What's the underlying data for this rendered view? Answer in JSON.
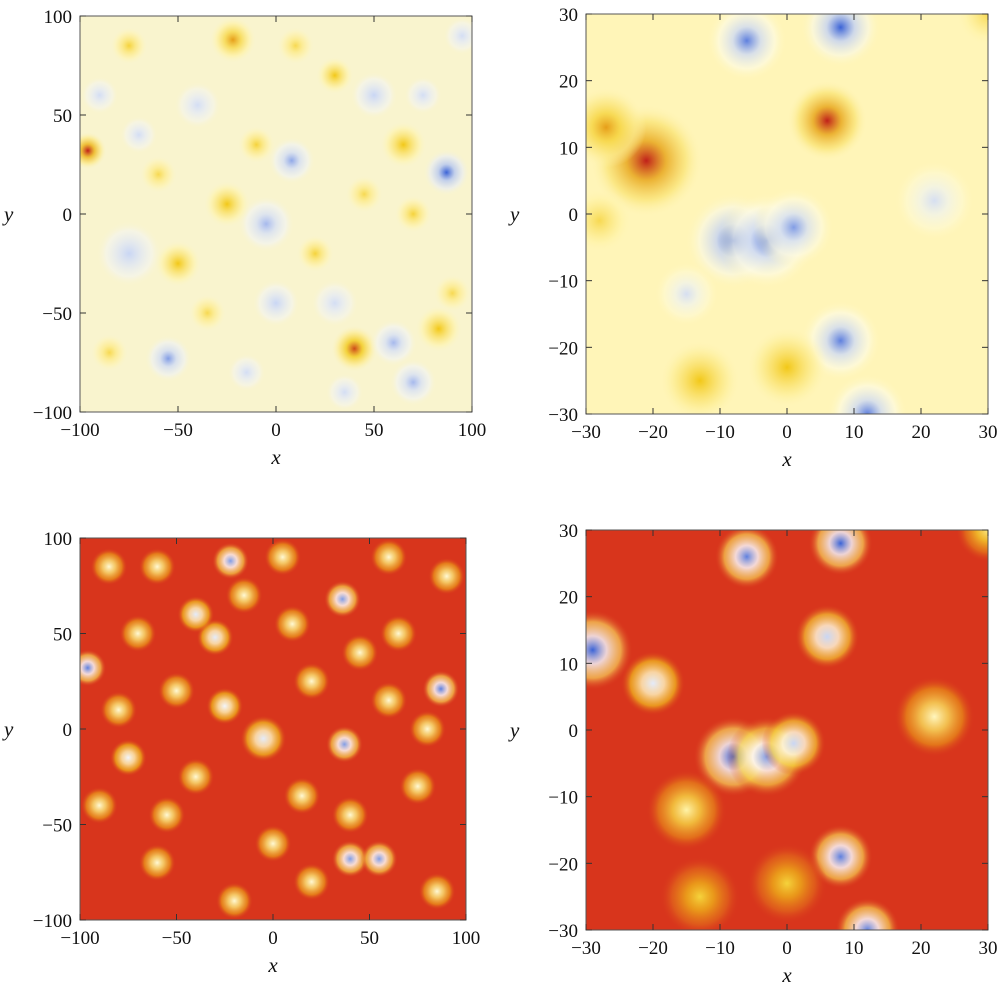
{
  "chart_data": [
    {
      "type": "heatmap",
      "panel": "top-left",
      "xlabel": "x",
      "ylabel": "y",
      "xlim": [
        -100,
        100
      ],
      "ylim": [
        -100,
        100
      ],
      "xticks": [
        -100,
        -50,
        0,
        50,
        100
      ],
      "yticks": [
        -100,
        -50,
        0,
        50,
        100
      ],
      "xtick_labels": [
        "−100",
        "−50",
        "0",
        "50",
        "100"
      ],
      "ytick_labels": [
        "−100",
        "−50",
        "0",
        "50",
        "100"
      ],
      "colormap": [
        "#3b63d6",
        "#c9d6f4",
        "#f3f5f4",
        "#fff3a8",
        "#f2c818",
        "#c0201a"
      ],
      "background_level": 0.5,
      "blobs": [
        {
          "x": -96,
          "y": 32,
          "r": 4,
          "level": 1.0
        },
        {
          "x": 40,
          "y": -68,
          "r": 5,
          "level": 0.95
        },
        {
          "x": -22,
          "y": 88,
          "r": 5,
          "level": 0.85
        },
        {
          "x": 87,
          "y": 21,
          "r": 5,
          "level": 0.0
        },
        {
          "x": 8,
          "y": 27,
          "r": 5,
          "level": 0.12
        },
        {
          "x": -55,
          "y": -73,
          "r": 5,
          "level": 0.1
        },
        {
          "x": -5,
          "y": -5,
          "r": 6,
          "level": 0.15
        },
        {
          "x": -75,
          "y": -20,
          "r": 7,
          "level": 0.2
        },
        {
          "x": 60,
          "y": -65,
          "r": 5,
          "level": 0.15
        },
        {
          "x": 70,
          "y": -85,
          "r": 5,
          "level": 0.15
        },
        {
          "x": -40,
          "y": 55,
          "r": 5,
          "level": 0.25
        },
        {
          "x": 50,
          "y": 60,
          "r": 5,
          "level": 0.2
        },
        {
          "x": 0,
          "y": -45,
          "r": 5,
          "level": 0.2
        },
        {
          "x": 30,
          "y": -45,
          "r": 5,
          "level": 0.25
        },
        {
          "x": -25,
          "y": 5,
          "r": 5,
          "level": 0.8
        },
        {
          "x": 65,
          "y": 35,
          "r": 5,
          "level": 0.8
        },
        {
          "x": 83,
          "y": -58,
          "r": 5,
          "level": 0.8
        },
        {
          "x": -50,
          "y": -25,
          "r": 5,
          "level": 0.8
        },
        {
          "x": 30,
          "y": 70,
          "r": 4,
          "level": 0.8
        },
        {
          "x": -10,
          "y": 35,
          "r": 4,
          "level": 0.75
        },
        {
          "x": 70,
          "y": 0,
          "r": 4,
          "level": 0.75
        },
        {
          "x": -75,
          "y": 85,
          "r": 4,
          "level": 0.75
        },
        {
          "x": 20,
          "y": -20,
          "r": 4,
          "level": 0.75
        },
        {
          "x": -85,
          "y": -70,
          "r": 4,
          "level": 0.72
        },
        {
          "x": 90,
          "y": -40,
          "r": 4,
          "level": 0.72
        },
        {
          "x": -35,
          "y": -50,
          "r": 4,
          "level": 0.72
        },
        {
          "x": 45,
          "y": 10,
          "r": 4,
          "level": 0.72
        },
        {
          "x": -60,
          "y": 20,
          "r": 4,
          "level": 0.72
        },
        {
          "x": 10,
          "y": 85,
          "r": 4,
          "level": 0.72
        },
        {
          "x": -90,
          "y": 60,
          "r": 4,
          "level": 0.25
        },
        {
          "x": 95,
          "y": 90,
          "r": 4,
          "level": 0.25
        },
        {
          "x": -15,
          "y": -80,
          "r": 4,
          "level": 0.25
        },
        {
          "x": 35,
          "y": -90,
          "r": 4,
          "level": 0.25
        },
        {
          "x": 75,
          "y": 60,
          "r": 4,
          "level": 0.25
        },
        {
          "x": -70,
          "y": 40,
          "r": 4,
          "level": 0.25
        }
      ]
    },
    {
      "type": "heatmap",
      "panel": "top-right",
      "xlabel": "x",
      "ylabel": "y",
      "xlim": [
        -30,
        30
      ],
      "ylim": [
        -30,
        30
      ],
      "xticks": [
        -30,
        -20,
        -10,
        0,
        10,
        20,
        30
      ],
      "yticks": [
        -30,
        -20,
        -10,
        0,
        10,
        20,
        30
      ],
      "xtick_labels": [
        "−30",
        "−20",
        "−10",
        "0",
        "10",
        "20",
        "30"
      ],
      "ytick_labels": [
        "−30",
        "−20",
        "−10",
        "0",
        "10",
        "20",
        "30"
      ],
      "colormap": [
        "#3b63d6",
        "#c9d6f4",
        "#fdfbe6",
        "#fff3a8",
        "#f2c818",
        "#c0201a"
      ],
      "background_level": 0.55,
      "blobs": [
        {
          "x": -21,
          "y": 8,
          "r": 3.5,
          "level": 1.0
        },
        {
          "x": -27,
          "y": 13,
          "r": 2.5,
          "level": 0.85
        },
        {
          "x": 6,
          "y": 14,
          "r": 2.5,
          "level": 1.0
        },
        {
          "x": -8,
          "y": -4,
          "r": 3,
          "level": 0.0
        },
        {
          "x": -3,
          "y": -4,
          "r": 3,
          "level": 0.05
        },
        {
          "x": 1,
          "y": -2,
          "r": 2.5,
          "level": 0.1
        },
        {
          "x": -6,
          "y": 26,
          "r": 2.5,
          "level": 0.05
        },
        {
          "x": 8,
          "y": 28,
          "r": 2.5,
          "level": 0.0
        },
        {
          "x": 8,
          "y": -19,
          "r": 2.5,
          "level": 0.05
        },
        {
          "x": 12,
          "y": -30,
          "r": 2.5,
          "level": 0.05
        },
        {
          "x": -15,
          "y": -12,
          "r": 2,
          "level": 0.25
        },
        {
          "x": 22,
          "y": 2,
          "r": 2.5,
          "level": 0.25
        },
        {
          "x": -13,
          "y": -25,
          "r": 2.5,
          "level": 0.8
        },
        {
          "x": 0,
          "y": -23,
          "r": 2.5,
          "level": 0.8
        },
        {
          "x": -28,
          "y": -1,
          "r": 2,
          "level": 0.72
        },
        {
          "x": 30,
          "y": 30,
          "r": 2,
          "level": 0.72
        }
      ]
    },
    {
      "type": "heatmap",
      "panel": "bottom-left",
      "xlabel": "x",
      "ylabel": "y",
      "xlim": [
        -100,
        100
      ],
      "ylim": [
        -100,
        100
      ],
      "xticks": [
        -100,
        -50,
        0,
        50,
        100
      ],
      "yticks": [
        -100,
        -50,
        0,
        50,
        100
      ],
      "xtick_labels": [
        "−100",
        "−50",
        "0",
        "50",
        "100"
      ],
      "ytick_labels": [
        "−100",
        "−50",
        "0",
        "50",
        "100"
      ],
      "colormap": [
        "#3b63d6",
        "#c9d6f4",
        "#ffffff",
        "#fff3a8",
        "#f2c818",
        "#d8351c"
      ],
      "background_level": 1.0,
      "blobs": [
        {
          "x": -96,
          "y": 32,
          "r": 4,
          "level": 0.05
        },
        {
          "x": -22,
          "y": 88,
          "r": 4,
          "level": 0.1
        },
        {
          "x": 36,
          "y": 68,
          "r": 4,
          "level": 0.1
        },
        {
          "x": 87,
          "y": 21,
          "r": 4,
          "level": 0.05
        },
        {
          "x": 37,
          "y": -8,
          "r": 4,
          "level": 0.1
        },
        {
          "x": 40,
          "y": -68,
          "r": 4,
          "level": 0.1
        },
        {
          "x": 55,
          "y": -68,
          "r": 4,
          "level": 0.1
        },
        {
          "x": -5,
          "y": -5,
          "r": 5,
          "level": 0.3
        },
        {
          "x": -30,
          "y": 48,
          "r": 4,
          "level": 0.3
        },
        {
          "x": -40,
          "y": 60,
          "r": 4,
          "level": 0.3
        },
        {
          "x": -25,
          "y": 12,
          "r": 4,
          "level": 0.35
        },
        {
          "x": -75,
          "y": -15,
          "r": 4,
          "level": 0.35
        },
        {
          "x": -85,
          "y": 85,
          "r": 4,
          "level": 0.5
        },
        {
          "x": -60,
          "y": 85,
          "r": 4,
          "level": 0.5
        },
        {
          "x": 5,
          "y": 90,
          "r": 4,
          "level": 0.5
        },
        {
          "x": 60,
          "y": 90,
          "r": 4,
          "level": 0.5
        },
        {
          "x": 90,
          "y": 80,
          "r": 4,
          "level": 0.5
        },
        {
          "x": -70,
          "y": 50,
          "r": 4,
          "level": 0.5
        },
        {
          "x": 10,
          "y": 55,
          "r": 4,
          "level": 0.5
        },
        {
          "x": 65,
          "y": 50,
          "r": 4,
          "level": 0.5
        },
        {
          "x": -50,
          "y": 20,
          "r": 4,
          "level": 0.5
        },
        {
          "x": 20,
          "y": 25,
          "r": 4,
          "level": 0.5
        },
        {
          "x": 60,
          "y": 15,
          "r": 4,
          "level": 0.5
        },
        {
          "x": -90,
          "y": -40,
          "r": 4,
          "level": 0.5
        },
        {
          "x": -40,
          "y": -25,
          "r": 4,
          "level": 0.5
        },
        {
          "x": 15,
          "y": -35,
          "r": 4,
          "level": 0.5
        },
        {
          "x": 75,
          "y": -30,
          "r": 4,
          "level": 0.5
        },
        {
          "x": -60,
          "y": -70,
          "r": 4,
          "level": 0.5
        },
        {
          "x": -20,
          "y": -90,
          "r": 4,
          "level": 0.5
        },
        {
          "x": 20,
          "y": -80,
          "r": 4,
          "level": 0.5
        },
        {
          "x": 85,
          "y": -85,
          "r": 4,
          "level": 0.5
        },
        {
          "x": -80,
          "y": 10,
          "r": 4,
          "level": 0.5
        },
        {
          "x": 45,
          "y": 40,
          "r": 4,
          "level": 0.5
        },
        {
          "x": -15,
          "y": 70,
          "r": 4,
          "level": 0.5
        },
        {
          "x": 80,
          "y": 0,
          "r": 4,
          "level": 0.5
        },
        {
          "x": -55,
          "y": -45,
          "r": 4,
          "level": 0.5
        },
        {
          "x": 40,
          "y": -45,
          "r": 4,
          "level": 0.5
        },
        {
          "x": 0,
          "y": -60,
          "r": 4,
          "level": 0.5
        }
      ]
    },
    {
      "type": "heatmap",
      "panel": "bottom-right",
      "xlabel": "x",
      "ylabel": "y",
      "xlim": [
        -30,
        30
      ],
      "ylim": [
        -30,
        30
      ],
      "xticks": [
        -30,
        -20,
        -10,
        0,
        10,
        20,
        30
      ],
      "yticks": [
        -30,
        -20,
        -10,
        0,
        10,
        20,
        30
      ],
      "xtick_labels": [
        "−30",
        "−20",
        "−10",
        "0",
        "10",
        "20",
        "30"
      ],
      "ytick_labels": [
        "−30",
        "−20",
        "−10",
        "0",
        "10",
        "20",
        "30"
      ],
      "colormap": [
        "#3b63d6",
        "#c9d6f4",
        "#ffffff",
        "#fff3a8",
        "#f2c818",
        "#d8351c"
      ],
      "background_level": 1.0,
      "blobs": [
        {
          "x": -29,
          "y": 12,
          "r": 2.5,
          "level": 0.0
        },
        {
          "x": -6,
          "y": 26,
          "r": 2,
          "level": 0.05
        },
        {
          "x": 8,
          "y": 28,
          "r": 2,
          "level": 0.0
        },
        {
          "x": 6,
          "y": 14,
          "r": 2,
          "level": 0.2
        },
        {
          "x": -8,
          "y": -4,
          "r": 2.5,
          "level": 0.0
        },
        {
          "x": -3,
          "y": -4,
          "r": 2.5,
          "level": 0.1
        },
        {
          "x": 1,
          "y": -2,
          "r": 2,
          "level": 0.2
        },
        {
          "x": -20,
          "y": 7,
          "r": 2,
          "level": 0.3
        },
        {
          "x": 8,
          "y": -19,
          "r": 2,
          "level": 0.05
        },
        {
          "x": 12,
          "y": -30,
          "r": 2,
          "level": 0.05
        },
        {
          "x": 22,
          "y": 2,
          "r": 2.5,
          "level": 0.55
        },
        {
          "x": -15,
          "y": -12,
          "r": 2.5,
          "level": 0.6
        },
        {
          "x": -13,
          "y": -25,
          "r": 2.5,
          "level": 0.75
        },
        {
          "x": 0,
          "y": -23,
          "r": 2.5,
          "level": 0.75
        },
        {
          "x": 30,
          "y": 30,
          "r": 2,
          "level": 0.65
        }
      ]
    }
  ]
}
